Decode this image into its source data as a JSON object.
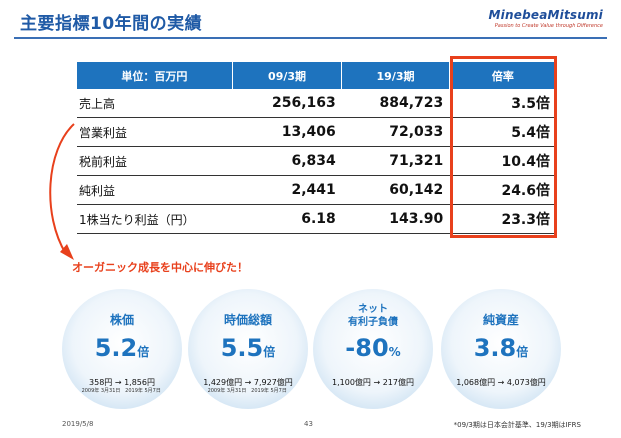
{
  "title": "主要指標10年間の実績",
  "logo": {
    "name": "MinebeaMitsumi",
    "tagline": "Passion to Create Value through Difference"
  },
  "table": {
    "headers": [
      "単位：百万円",
      "09/3期",
      "19/3期",
      "倍率"
    ],
    "rows": [
      {
        "label": "売上高",
        "a": "256,163",
        "b": "884,723",
        "c": "3.5倍"
      },
      {
        "label": "営業利益",
        "a": "13,406",
        "b": "72,033",
        "c": "5.4倍"
      },
      {
        "label": "税前利益",
        "a": "6,834",
        "b": "71,321",
        "c": "10.4倍"
      },
      {
        "label": "純利益",
        "a": "2,441",
        "b": "60,142",
        "c": "24.6倍"
      },
      {
        "label": "1株当たり利益（円）",
        "a": "6.18",
        "b": "143.90",
        "c": "23.3倍"
      }
    ]
  },
  "callout": "オーガニック成長を中心に伸びた！",
  "circles": [
    {
      "label": "株価",
      "value": "5.2",
      "unit": "倍",
      "detail": "358円 → 1,856円",
      "date_from": "2009年 3月31日",
      "date_to": "2019年 5月7日"
    },
    {
      "label": "時価総額",
      "value": "5.5",
      "unit": "倍",
      "detail": "1,429億円 → 7,927億円",
      "date_from": "2009年 3月31日",
      "date_to": "2019年 5月7日"
    },
    {
      "label_line1": "ネット",
      "label_line2": "有利子負債",
      "value": "-80",
      "unit": "%",
      "detail": "1,100億円 → 217億円"
    },
    {
      "label": "純資産",
      "value": "3.8",
      "unit": "倍",
      "detail": "1,068億円 → 4,073億円"
    }
  ],
  "footer": {
    "date": "2019/5/8",
    "page": "43",
    "note": "*09/3期は日本会計基準、19/3期はIFRS"
  },
  "colors": {
    "accent": "#1e73be",
    "highlight": "#e8401c"
  }
}
